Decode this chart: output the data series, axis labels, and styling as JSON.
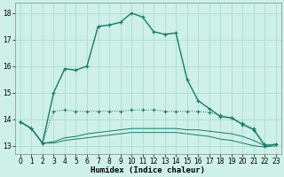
{
  "xlabel": "Humidex (Indice chaleur)",
  "ylabel": "",
  "background_color": "#cef0e8",
  "grid_color": "#aaddd0",
  "line_color": "#1a7a6a",
  "xlim": [
    -0.5,
    23.5
  ],
  "ylim": [
    12.7,
    18.4
  ],
  "yticks": [
    13,
    14,
    15,
    16,
    17,
    18
  ],
  "xticks": [
    0,
    1,
    2,
    3,
    4,
    5,
    6,
    7,
    8,
    9,
    10,
    11,
    12,
    13,
    14,
    15,
    16,
    17,
    18,
    19,
    20,
    21,
    22,
    23
  ],
  "s1_x": [
    0,
    1,
    2,
    3,
    4,
    5,
    6,
    7,
    8,
    9,
    10,
    11,
    12,
    13,
    14,
    15,
    16,
    17,
    18,
    19,
    20,
    21,
    22,
    23
  ],
  "s1_y": [
    13.9,
    13.65,
    13.1,
    15.0,
    15.9,
    15.85,
    16.0,
    17.5,
    17.55,
    17.65,
    18.0,
    17.85,
    17.3,
    17.2,
    17.25,
    15.5,
    14.7,
    14.4,
    14.1,
    14.05,
    13.8,
    13.6,
    13.0,
    13.05
  ],
  "s2_x": [
    0,
    1,
    2,
    3,
    4,
    5,
    6,
    7,
    8,
    9,
    10,
    11,
    12,
    13,
    14,
    15,
    16,
    17,
    18,
    19,
    20,
    21,
    22,
    23
  ],
  "s2_y": [
    13.9,
    13.65,
    13.1,
    14.3,
    14.35,
    14.3,
    14.3,
    14.3,
    14.3,
    14.3,
    14.35,
    14.35,
    14.35,
    14.3,
    14.3,
    14.3,
    14.3,
    14.25,
    14.15,
    14.05,
    13.85,
    13.65,
    13.05,
    13.05
  ],
  "s3_x": [
    0,
    1,
    2,
    3,
    4,
    5,
    6,
    7,
    8,
    9,
    10,
    11,
    12,
    13,
    14,
    15,
    16,
    17,
    18,
    19,
    20,
    21,
    22,
    23
  ],
  "s3_y": [
    13.9,
    13.65,
    13.1,
    13.15,
    13.3,
    13.35,
    13.45,
    13.5,
    13.55,
    13.6,
    13.65,
    13.65,
    13.65,
    13.65,
    13.65,
    13.6,
    13.6,
    13.55,
    13.5,
    13.45,
    13.35,
    13.2,
    13.0,
    13.05
  ],
  "s4_x": [
    0,
    1,
    2,
    3,
    4,
    5,
    6,
    7,
    8,
    9,
    10,
    11,
    12,
    13,
    14,
    15,
    16,
    17,
    18,
    19,
    20,
    21,
    22,
    23
  ],
  "s4_y": [
    13.9,
    13.65,
    13.1,
    13.1,
    13.2,
    13.25,
    13.3,
    13.35,
    13.4,
    13.45,
    13.5,
    13.5,
    13.5,
    13.5,
    13.5,
    13.45,
    13.4,
    13.35,
    13.25,
    13.2,
    13.1,
    13.0,
    12.95,
    13.0
  ]
}
